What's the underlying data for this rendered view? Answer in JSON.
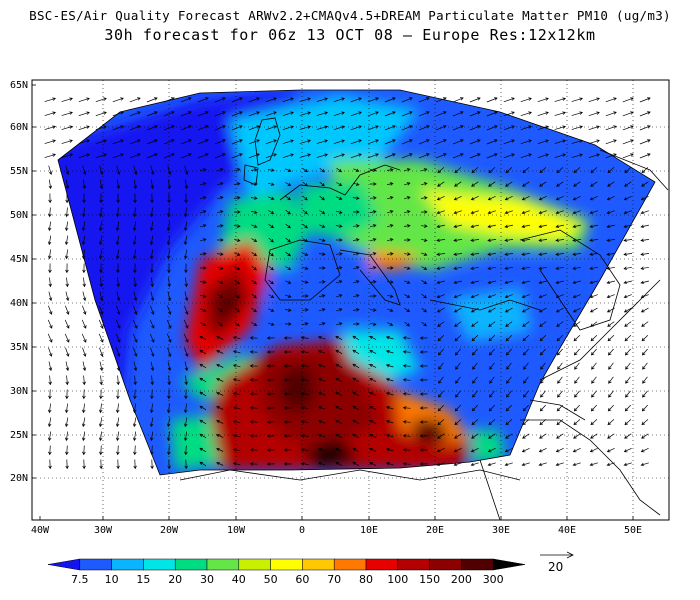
{
  "title_line1": "BSC-ES/Air Quality Forecast ARWv2.2+CMAQv4.5+DREAM Particulate Matter PM10 (ug/m3)",
  "title_line2": "30h forecast for 06z 13 OCT 08 — Europe Res:12x12km",
  "lat_labels": [
    "65N",
    "60N",
    "55N",
    "50N",
    "45N",
    "40N",
    "35N",
    "30N",
    "25N",
    "20N"
  ],
  "lon_labels": [
    "40W",
    "30W",
    "20W",
    "10W",
    "0",
    "10E",
    "20E",
    "30E",
    "40E",
    "50E"
  ],
  "colorbar": {
    "labels": [
      "7.5",
      "10",
      "15",
      "20",
      "30",
      "40",
      "50",
      "60",
      "70",
      "80",
      "100",
      "150",
      "200",
      "300"
    ],
    "colors": [
      "#1414f0",
      "#1e5aff",
      "#0ab4ff",
      "#00e6e6",
      "#00dc82",
      "#64e646",
      "#c8f000",
      "#ffff00",
      "#ffc800",
      "#ff7800",
      "#e60000",
      "#b40000",
      "#8c0000",
      "#500000",
      "#000000"
    ]
  },
  "vector_legend": {
    "label": "20"
  }
}
